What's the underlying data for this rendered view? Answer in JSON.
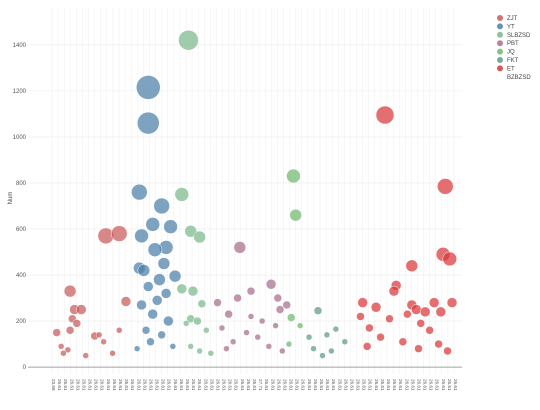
{
  "chart_data": {
    "type": "scatter",
    "title": "",
    "xlabel": "",
    "ylabel": "Num",
    "ylim": [
      -30,
      1560
    ],
    "yticks": [
      0,
      200,
      400,
      600,
      800,
      1000,
      1200,
      1400
    ],
    "grid": true,
    "legend_placement": "top-right",
    "x_tick_labels": [
      "23.68",
      "26.61",
      "26.61",
      "26.61",
      "26.61",
      "26.61",
      "26.61",
      "26.61",
      "26.61",
      "26.61",
      "26.61",
      "26.61",
      "26.61",
      "26.61",
      "26.61",
      "26.61",
      "26.61",
      "26.61",
      "26.61",
      "26.61",
      "26.61",
      "26.61",
      "26.61",
      "26.61",
      "26.61",
      "26.61",
      "26.61",
      "26.61",
      "26.61",
      "26.61",
      "26.61",
      "26.61",
      "26.61",
      "26.61",
      "27.71",
      "26.61",
      "26.61",
      "26.61",
      "26.61",
      "26.61",
      "26.61",
      "26.61",
      "26.61",
      "26.61",
      "26.61",
      "26.61",
      "26.61",
      "26.61",
      "26.61",
      "26.61",
      "26.61",
      "26.61",
      "26.61",
      "26.61",
      "26.61",
      "26.61",
      "26.61",
      "26.61",
      "26.61",
      "26.61",
      "26.61",
      "26.61",
      "26.61",
      "26.61",
      "26.61",
      "26.61",
      "26.61"
    ],
    "series": [
      {
        "name": "ZJT",
        "color": "#c85a5a",
        "points": [
          {
            "x": 3,
            "y": 150,
            "s": 4
          },
          {
            "x": 5,
            "y": 90,
            "s": 3
          },
          {
            "x": 9,
            "y": 330,
            "s": 6
          },
          {
            "x": 11,
            "y": 250,
            "s": 5
          },
          {
            "x": 14,
            "y": 250,
            "s": 5
          },
          {
            "x": 10,
            "y": 210,
            "s": 4
          },
          {
            "x": 12,
            "y": 190,
            "s": 4
          },
          {
            "x": 9,
            "y": 160,
            "s": 4
          },
          {
            "x": 20,
            "y": 135,
            "s": 4
          },
          {
            "x": 22,
            "y": 140,
            "s": 3
          },
          {
            "x": 31,
            "y": 160,
            "s": 3
          },
          {
            "x": 34,
            "y": 285,
            "s": 5
          },
          {
            "x": 25,
            "y": 570,
            "s": 8
          },
          {
            "x": 31,
            "y": 580,
            "s": 8
          },
          {
            "x": 8,
            "y": 75,
            "s": 3
          },
          {
            "x": 6,
            "y": 60,
            "s": 3
          },
          {
            "x": 16,
            "y": 50,
            "s": 3
          },
          {
            "x": 28,
            "y": 60,
            "s": 3
          },
          {
            "x": 24,
            "y": 110,
            "s": 3
          }
        ]
      },
      {
        "name": "YT",
        "color": "#4c7fa8",
        "points": [
          {
            "x": 44,
            "y": 1215,
            "s": 12
          },
          {
            "x": 44,
            "y": 1060,
            "s": 11
          },
          {
            "x": 40,
            "y": 760,
            "s": 8
          },
          {
            "x": 50,
            "y": 700,
            "s": 8
          },
          {
            "x": 54,
            "y": 610,
            "s": 7
          },
          {
            "x": 46,
            "y": 620,
            "s": 7
          },
          {
            "x": 41,
            "y": 570,
            "s": 7
          },
          {
            "x": 52,
            "y": 520,
            "s": 7
          },
          {
            "x": 47,
            "y": 510,
            "s": 7
          },
          {
            "x": 51,
            "y": 450,
            "s": 6
          },
          {
            "x": 40,
            "y": 430,
            "s": 6
          },
          {
            "x": 42,
            "y": 420,
            "s": 6
          },
          {
            "x": 56,
            "y": 395,
            "s": 6
          },
          {
            "x": 49,
            "y": 380,
            "s": 6
          },
          {
            "x": 44,
            "y": 350,
            "s": 5
          },
          {
            "x": 52,
            "y": 320,
            "s": 5
          },
          {
            "x": 48,
            "y": 290,
            "s": 5
          },
          {
            "x": 41,
            "y": 270,
            "s": 5
          },
          {
            "x": 46,
            "y": 230,
            "s": 5
          },
          {
            "x": 53,
            "y": 200,
            "s": 5
          },
          {
            "x": 43,
            "y": 160,
            "s": 4
          },
          {
            "x": 50,
            "y": 140,
            "s": 4
          },
          {
            "x": 45,
            "y": 110,
            "s": 4
          },
          {
            "x": 55,
            "y": 90,
            "s": 3
          },
          {
            "x": 39,
            "y": 80,
            "s": 3
          }
        ]
      },
      {
        "name": "SLBZSD",
        "color": "#7ab88a",
        "points": [
          {
            "x": 62,
            "y": 1420,
            "s": 10
          },
          {
            "x": 59,
            "y": 750,
            "s": 7
          },
          {
            "x": 63,
            "y": 590,
            "s": 6
          },
          {
            "x": 67,
            "y": 565,
            "s": 6
          },
          {
            "x": 59,
            "y": 340,
            "s": 5
          },
          {
            "x": 64,
            "y": 330,
            "s": 5
          },
          {
            "x": 68,
            "y": 275,
            "s": 4
          },
          {
            "x": 63,
            "y": 210,
            "s": 4
          },
          {
            "x": 66,
            "y": 200,
            "s": 4
          },
          {
            "x": 61,
            "y": 190,
            "s": 3
          },
          {
            "x": 70,
            "y": 160,
            "s": 3
          },
          {
            "x": 63,
            "y": 90,
            "s": 3
          },
          {
            "x": 67,
            "y": 70,
            "s": 3
          },
          {
            "x": 72,
            "y": 60,
            "s": 3
          }
        ]
      },
      {
        "name": "PBT",
        "color": "#a86e8c",
        "points": [
          {
            "x": 85,
            "y": 520,
            "s": 6
          },
          {
            "x": 99,
            "y": 360,
            "s": 5
          },
          {
            "x": 90,
            "y": 330,
            "s": 4
          },
          {
            "x": 102,
            "y": 300,
            "s": 4
          },
          {
            "x": 84,
            "y": 300,
            "s": 4
          },
          {
            "x": 75,
            "y": 280,
            "s": 4
          },
          {
            "x": 106,
            "y": 270,
            "s": 4
          },
          {
            "x": 103,
            "y": 250,
            "s": 4
          },
          {
            "x": 80,
            "y": 230,
            "s": 4
          },
          {
            "x": 90,
            "y": 220,
            "s": 3
          },
          {
            "x": 95,
            "y": 200,
            "s": 3
          },
          {
            "x": 101,
            "y": 180,
            "s": 3
          },
          {
            "x": 77,
            "y": 170,
            "s": 3
          },
          {
            "x": 88,
            "y": 150,
            "s": 3
          },
          {
            "x": 93,
            "y": 130,
            "s": 3
          },
          {
            "x": 82,
            "y": 110,
            "s": 3
          },
          {
            "x": 98,
            "y": 90,
            "s": 3
          },
          {
            "x": 79,
            "y": 80,
            "s": 3
          },
          {
            "x": 104,
            "y": 70,
            "s": 3
          }
        ]
      },
      {
        "name": "JQ",
        "color": "#6fb86f",
        "points": [
          {
            "x": 109,
            "y": 830,
            "s": 7
          },
          {
            "x": 110,
            "y": 660,
            "s": 6
          },
          {
            "x": 108,
            "y": 215,
            "s": 4
          },
          {
            "x": 112,
            "y": 180,
            "s": 3
          },
          {
            "x": 107,
            "y": 100,
            "s": 3
          }
        ]
      },
      {
        "name": "FKT",
        "color": "#5f9a8c",
        "points": [
          {
            "x": 120,
            "y": 245,
            "s": 4
          },
          {
            "x": 128,
            "y": 165,
            "s": 3
          },
          {
            "x": 116,
            "y": 130,
            "s": 3
          },
          {
            "x": 124,
            "y": 140,
            "s": 3
          },
          {
            "x": 132,
            "y": 110,
            "s": 3
          },
          {
            "x": 118,
            "y": 80,
            "s": 3
          },
          {
            "x": 126,
            "y": 70,
            "s": 3
          },
          {
            "x": 122,
            "y": 50,
            "s": 3
          }
        ]
      },
      {
        "name": "ET",
        "color": "#d9383a",
        "points": [
          {
            "x": 150,
            "y": 1095,
            "s": 9
          },
          {
            "x": 177,
            "y": 785,
            "s": 8
          },
          {
            "x": 176,
            "y": 490,
            "s": 7
          },
          {
            "x": 179,
            "y": 470,
            "s": 7
          },
          {
            "x": 162,
            "y": 440,
            "s": 6
          },
          {
            "x": 155,
            "y": 355,
            "s": 5
          },
          {
            "x": 154,
            "y": 330,
            "s": 5
          },
          {
            "x": 140,
            "y": 280,
            "s": 5
          },
          {
            "x": 172,
            "y": 280,
            "s": 5
          },
          {
            "x": 180,
            "y": 280,
            "s": 5
          },
          {
            "x": 162,
            "y": 270,
            "s": 5
          },
          {
            "x": 146,
            "y": 260,
            "s": 5
          },
          {
            "x": 164,
            "y": 250,
            "s": 5
          },
          {
            "x": 168,
            "y": 240,
            "s": 5
          },
          {
            "x": 175,
            "y": 240,
            "s": 5
          },
          {
            "x": 139,
            "y": 220,
            "s": 4
          },
          {
            "x": 160,
            "y": 230,
            "s": 4
          },
          {
            "x": 152,
            "y": 210,
            "s": 4
          },
          {
            "x": 166,
            "y": 190,
            "s": 4
          },
          {
            "x": 143,
            "y": 170,
            "s": 4
          },
          {
            "x": 170,
            "y": 160,
            "s": 4
          },
          {
            "x": 148,
            "y": 130,
            "s": 4
          },
          {
            "x": 158,
            "y": 110,
            "s": 4
          },
          {
            "x": 174,
            "y": 100,
            "s": 4
          },
          {
            "x": 142,
            "y": 90,
            "s": 4
          },
          {
            "x": 165,
            "y": 80,
            "s": 4
          },
          {
            "x": 178,
            "y": 70,
            "s": 4
          }
        ]
      },
      {
        "name": "BZBZSD",
        "color": "#ffffff",
        "points": []
      }
    ]
  }
}
